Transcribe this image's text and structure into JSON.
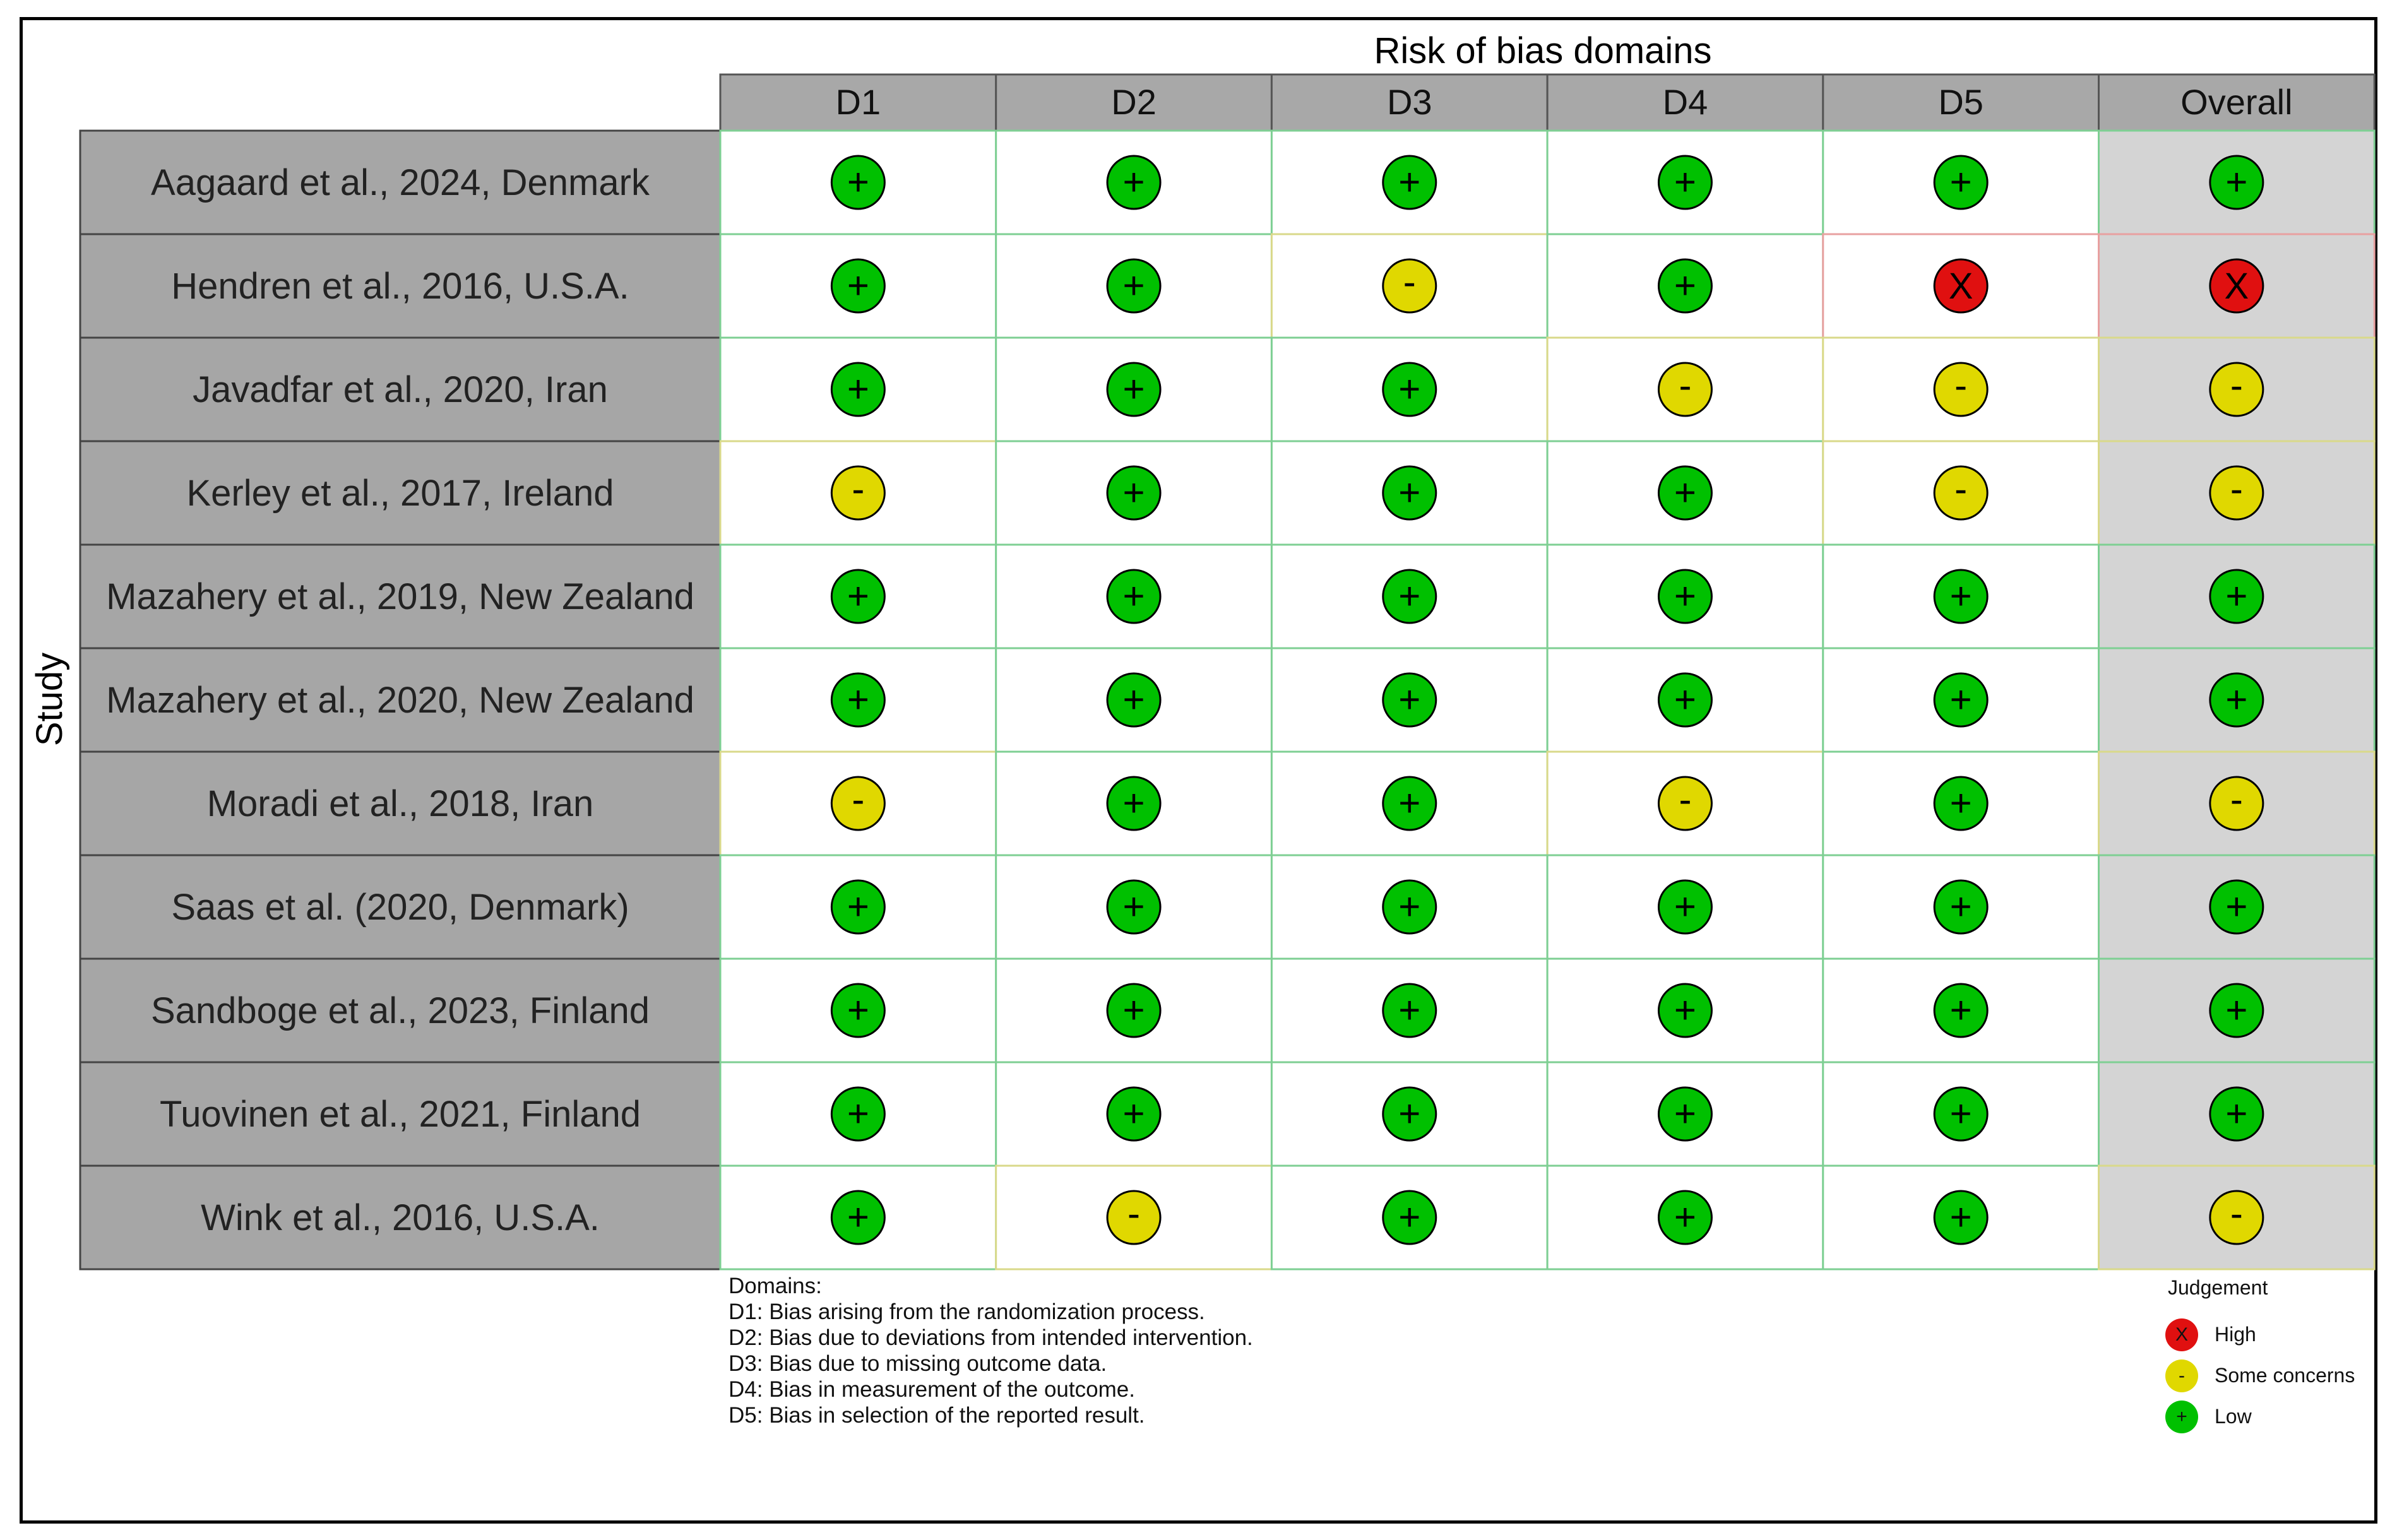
{
  "chart_data": {
    "type": "table",
    "title": "Risk of bias domains",
    "ylabel": "Study",
    "columns": [
      "D1",
      "D2",
      "D3",
      "D4",
      "D5",
      "Overall"
    ],
    "studies": [
      "Aagaard et al., 2024, Denmark",
      "Hendren et al., 2016, U.S.A.",
      "Javadfar et al., 2020, Iran",
      "Kerley et al., 2017, Ireland",
      "Mazahery et al., 2019, New Zealand",
      "Mazahery et al., 2020, New Zealand",
      "Moradi et al., 2018, Iran",
      "Saas et al. (2020, Denmark)",
      "Sandboge et al., 2023, Finland",
      "Tuovinen et al., 2021, Finland",
      "Wink et al., 2016, U.S.A."
    ],
    "judgements": [
      [
        "+",
        "+",
        "+",
        "+",
        "+",
        "+"
      ],
      [
        "+",
        "+",
        "-",
        "+",
        "X",
        "X"
      ],
      [
        "+",
        "+",
        "+",
        "-",
        "-",
        "-"
      ],
      [
        "-",
        "+",
        "+",
        "+",
        "-",
        "-"
      ],
      [
        "+",
        "+",
        "+",
        "+",
        "+",
        "+"
      ],
      [
        "+",
        "+",
        "+",
        "+",
        "+",
        "+"
      ],
      [
        "-",
        "+",
        "+",
        "-",
        "+",
        "-"
      ],
      [
        "+",
        "+",
        "+",
        "+",
        "+",
        "+"
      ],
      [
        "+",
        "+",
        "+",
        "+",
        "+",
        "+"
      ],
      [
        "+",
        "+",
        "+",
        "+",
        "+",
        "+"
      ],
      [
        "+",
        "-",
        "+",
        "+",
        "+",
        "-"
      ]
    ],
    "symbol_colors": {
      "+": "#00c000",
      "-": "#e0d800",
      "X": "#e01010"
    },
    "grid_colors": {
      "+": "#7ecf93",
      "-": "#d9d98a",
      "X": "#e8a0a0"
    },
    "header_color": "#a8a8a8",
    "study_cell_color": "#a6a6a6",
    "overall_cell_color": "#d4d4d4"
  },
  "domains_note": {
    "heading": "Domains:",
    "lines": [
      "D1: Bias arising from the randomization process.",
      "D2: Bias due to deviations from intended intervention.",
      "D3: Bias due to missing outcome data.",
      "D4: Bias in measurement of the outcome.",
      "D5: Bias in selection of the reported result."
    ]
  },
  "legend": {
    "title": "Judgement",
    "items": [
      {
        "symbol": "X",
        "label": "High"
      },
      {
        "symbol": "-",
        "label": "Some concerns"
      },
      {
        "symbol": "+",
        "label": "Low"
      }
    ]
  }
}
